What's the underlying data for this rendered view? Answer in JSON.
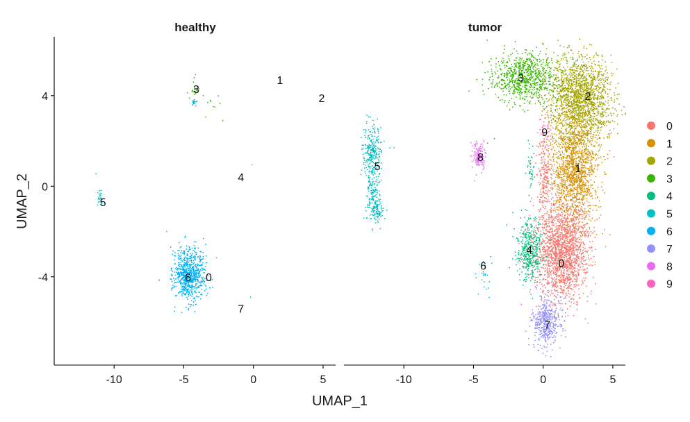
{
  "chart_data": {
    "type": "scatter",
    "xlabel": "UMAP_1",
    "ylabel": "UMAP_2",
    "xlim": [
      -14.3,
      5.9
    ],
    "ylim": [
      -7.9,
      6.6
    ],
    "x_ticks": [
      -10,
      -5,
      0,
      5
    ],
    "y_ticks": [
      -4,
      0,
      4
    ],
    "legend_position": "right",
    "legend": [
      {
        "label": "0",
        "color": "#F8766D"
      },
      {
        "label": "1",
        "color": "#D89000"
      },
      {
        "label": "2",
        "color": "#A3A500"
      },
      {
        "label": "3",
        "color": "#39B600"
      },
      {
        "label": "4",
        "color": "#00BF7D"
      },
      {
        "label": "5",
        "color": "#00BFC4"
      },
      {
        "label": "6",
        "color": "#00B0F6"
      },
      {
        "label": "7",
        "color": "#9590FF"
      },
      {
        "label": "8",
        "color": "#E76BF3"
      },
      {
        "label": "9",
        "color": "#FF62BC"
      }
    ],
    "facets": [
      {
        "title": "healthy",
        "cluster_labels": [
          {
            "label": "0",
            "x": -3.2,
            "y": -4.0
          },
          {
            "label": "1",
            "x": 1.9,
            "y": 4.7
          },
          {
            "label": "2",
            "x": 4.9,
            "y": 3.9
          },
          {
            "label": "3",
            "x": -4.1,
            "y": 4.3
          },
          {
            "label": "4",
            "x": -0.9,
            "y": 0.4
          },
          {
            "label": "5",
            "x": -10.8,
            "y": -0.7
          },
          {
            "label": "6",
            "x": -4.7,
            "y": -4.0
          },
          {
            "label": "7",
            "x": -0.9,
            "y": -5.4
          }
        ],
        "clusters": [
          {
            "cluster": "6",
            "cx": -4.6,
            "cy": -3.9,
            "sx": 0.55,
            "sy": 0.6,
            "n": 750
          },
          {
            "cluster": "5",
            "cx": -11.0,
            "cy": -0.55,
            "sx": 0.12,
            "sy": 0.2,
            "n": 26
          },
          {
            "cluster": "3",
            "cx": -4.2,
            "cy": 4.3,
            "sx": 0.2,
            "sy": 0.25,
            "n": 22
          },
          {
            "cluster": "6",
            "cx": -4.25,
            "cy": 3.7,
            "sx": 0.1,
            "sy": 0.1,
            "n": 12
          },
          {
            "cluster": "3",
            "cx": -3.0,
            "cy": 3.6,
            "sx": 0.5,
            "sy": 0.4,
            "n": 8
          }
        ],
        "sparse_points": [
          {
            "cluster": "5",
            "x": -11.3,
            "y": 0.55
          },
          {
            "cluster": "9",
            "x": -0.1,
            "y": 0.95
          },
          {
            "cluster": "6",
            "x": -0.2,
            "y": -4.9
          },
          {
            "cluster": "3",
            "x": -2.2,
            "y": 2.9
          },
          {
            "cluster": "3",
            "x": -3.6,
            "y": 4.0
          }
        ]
      },
      {
        "title": "tumor",
        "cluster_labels": [
          {
            "label": "0",
            "x": 1.3,
            "y": -3.4
          },
          {
            "label": "1",
            "x": 2.5,
            "y": 0.8
          },
          {
            "label": "2",
            "x": 3.2,
            "y": 4.0
          },
          {
            "label": "3",
            "x": -1.6,
            "y": 4.8
          },
          {
            "label": "4",
            "x": -1.0,
            "y": -2.8
          },
          {
            "label": "5",
            "x": -11.9,
            "y": 0.9
          },
          {
            "label": "6",
            "x": -4.3,
            "y": -3.5
          },
          {
            "label": "7",
            "x": 0.3,
            "y": -6.1
          },
          {
            "label": "8",
            "x": -4.5,
            "y": 1.3
          },
          {
            "label": "9",
            "x": 0.1,
            "y": 2.4
          }
        ],
        "clusters": [
          {
            "cluster": "2",
            "cx": 2.7,
            "cy": 3.8,
            "sx": 1.1,
            "sy": 1.0,
            "n": 1800
          },
          {
            "cluster": "1",
            "cx": 2.2,
            "cy": 0.7,
            "sx": 0.85,
            "sy": 1.2,
            "n": 1400
          },
          {
            "cluster": "3",
            "cx": -1.3,
            "cy": 4.8,
            "sx": 1.2,
            "sy": 0.55,
            "n": 800
          },
          {
            "cluster": "0",
            "cx": 1.4,
            "cy": -2.9,
            "sx": 0.95,
            "sy": 1.05,
            "n": 1800
          },
          {
            "cluster": "0",
            "cx": 0.1,
            "cy": 0.5,
            "sx": 0.25,
            "sy": 0.9,
            "n": 200
          },
          {
            "cluster": "4",
            "cx": -1.0,
            "cy": -2.8,
            "sx": 0.45,
            "sy": 0.7,
            "n": 400
          },
          {
            "cluster": "4",
            "cx": -0.9,
            "cy": 0.7,
            "sx": 0.15,
            "sy": 0.6,
            "n": 40
          },
          {
            "cluster": "7",
            "cx": 0.2,
            "cy": -6.0,
            "sx": 0.55,
            "sy": 0.55,
            "n": 450
          },
          {
            "cluster": "9",
            "cx": 0.1,
            "cy": 2.4,
            "sx": 0.25,
            "sy": 0.35,
            "n": 40
          },
          {
            "cluster": "8",
            "cx": -4.6,
            "cy": 1.3,
            "sx": 0.25,
            "sy": 0.35,
            "n": 130
          },
          {
            "cluster": "5",
            "cx": -12.3,
            "cy": 1.5,
            "sx": 0.3,
            "sy": 0.6,
            "n": 260
          },
          {
            "cluster": "5",
            "cx": -12.2,
            "cy": -0.4,
            "sx": 0.25,
            "sy": 0.6,
            "n": 160
          },
          {
            "cluster": "5",
            "cx": -11.8,
            "cy": -1.1,
            "sx": 0.2,
            "sy": 0.25,
            "n": 60
          },
          {
            "cluster": "6",
            "cx": -4.1,
            "cy": -4.0,
            "sx": 0.35,
            "sy": 0.45,
            "n": 22
          }
        ],
        "sparse_points": [
          {
            "cluster": "5",
            "x": -11.0,
            "y": 1.7
          },
          {
            "cluster": "5",
            "x": -10.7,
            "y": 1.7
          },
          {
            "cluster": "3",
            "x": -3.5,
            "y": 2.1
          },
          {
            "cluster": "3",
            "x": -4.0,
            "y": 1.9
          },
          {
            "cluster": "8",
            "x": -4.8,
            "y": 0.5
          }
        ]
      }
    ]
  }
}
